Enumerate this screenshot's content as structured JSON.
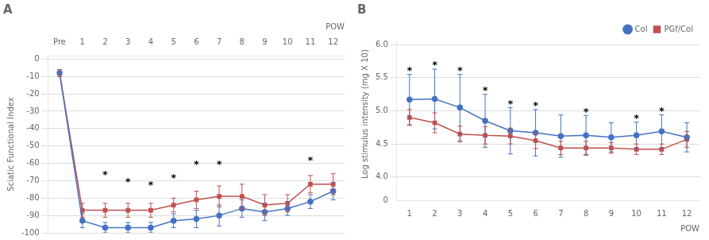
{
  "chart_data": [
    {
      "type": "line",
      "title": "A",
      "xlabel": "POW",
      "ylabel": "Sciatic Functional Index",
      "categories": [
        "Pre",
        "1",
        "2",
        "3",
        "4",
        "5",
        "6",
        "7",
        "8",
        "9",
        "10",
        "11",
        "12"
      ],
      "series": [
        {
          "color": "#4472C4",
          "marker": "circle",
          "values": [
            -8,
            -93,
            -97,
            -97,
            -97,
            -93,
            -92,
            -90,
            -86,
            -88,
            -86,
            -82,
            -76
          ],
          "errors": [
            2,
            4,
            3,
            3,
            3,
            4,
            5,
            6,
            5,
            5,
            4,
            4,
            5
          ]
        },
        {
          "color": "#C0504D",
          "marker": "square",
          "values": [
            -8,
            -87,
            -87,
            -87,
            -87,
            -84,
            -81,
            -79,
            -79,
            -84,
            -83,
            -72,
            -72
          ],
          "errors": [
            2,
            4,
            4,
            4,
            4,
            4,
            5,
            6,
            7,
            6,
            5,
            5,
            6
          ]
        }
      ],
      "ylim": [
        -100,
        2
      ],
      "yticks": [
        0,
        -10,
        -20,
        -30,
        -40,
        -50,
        -60,
        -70,
        -80,
        -90,
        -100
      ],
      "grid": "y",
      "annotations": [
        {
          "text": "*",
          "x": "2",
          "y": -68
        },
        {
          "text": "*",
          "x": "3",
          "y": -72
        },
        {
          "text": "*",
          "x": "4",
          "y": -74
        },
        {
          "text": "*",
          "x": "5",
          "y": -70
        },
        {
          "text": "*",
          "x": "6",
          "y": -62
        },
        {
          "text": "*",
          "x": "7",
          "y": -62
        },
        {
          "text": "*",
          "x": "11",
          "y": -60
        }
      ]
    },
    {
      "type": "line",
      "title": "B",
      "xlabel": "POW",
      "ylabel": "Log stimulus intensity (mg X 10)",
      "categories": [
        "1",
        "2",
        "3",
        "4",
        "5",
        "6",
        "7",
        "8",
        "9",
        "10",
        "11",
        "12"
      ],
      "series": [
        {
          "name": "Col",
          "color": "#4472C4",
          "marker": "circle",
          "values": [
            5.17,
            5.18,
            5.05,
            4.85,
            4.7,
            4.67,
            4.62,
            4.63,
            4.6,
            4.63,
            4.69,
            4.6
          ],
          "errors": [
            0.38,
            0.45,
            0.5,
            0.4,
            0.35,
            0.35,
            0.32,
            0.3,
            0.22,
            0.2,
            0.25,
            0.22
          ]
        },
        {
          "name": "PGf/Col",
          "color": "#C0504D",
          "marker": "square",
          "values": [
            4.9,
            4.82,
            4.65,
            4.63,
            4.62,
            4.55,
            4.44,
            4.44,
            4.44,
            4.42,
            4.42,
            4.57
          ],
          "errors": [
            0.12,
            0.15,
            0.12,
            0.13,
            0.12,
            0.12,
            0.1,
            0.1,
            0.08,
            0.08,
            0.08,
            0.12
          ]
        }
      ],
      "ylim": [
        3.85,
        6.05
      ],
      "yticks": [
        {
          "value": 4,
          "label": "4.0"
        },
        4.5,
        {
          "value": 5,
          "label": "5.0"
        },
        5.5,
        {
          "value": 6,
          "label": "6.0"
        }
      ],
      "y2lim": [
        0,
        0.3
      ],
      "y2ticks": [
        0
      ],
      "grid": "y",
      "legend": "upper right",
      "annotations": [
        {
          "text": "*",
          "x": "1",
          "y": 5.57
        },
        {
          "text": "*",
          "x": "2",
          "y": 5.65
        },
        {
          "text": "*",
          "x": "3",
          "y": 5.57
        },
        {
          "text": "*",
          "x": "4",
          "y": 5.27
        },
        {
          "text": "*",
          "x": "5",
          "y": 5.07
        },
        {
          "text": "*",
          "x": "6",
          "y": 5.04
        },
        {
          "text": "*",
          "x": "8",
          "y": 4.95
        },
        {
          "text": "*",
          "x": "10",
          "y": 4.85
        },
        {
          "text": "*",
          "x": "11",
          "y": 4.96
        }
      ]
    }
  ]
}
